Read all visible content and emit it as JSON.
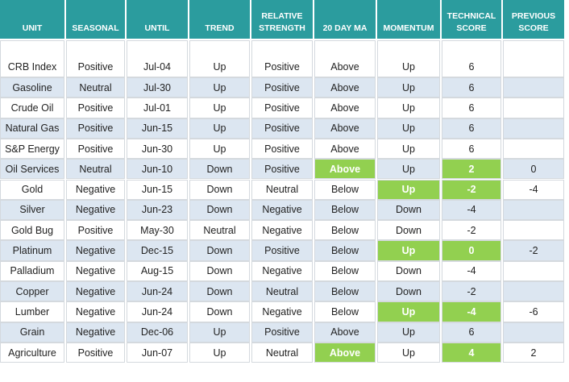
{
  "table": {
    "columns": [
      "UNIT",
      "SEASONAL",
      "UNTIL",
      "TREND",
      "RELATIVE STRENGTH",
      "20 DAY MA",
      "MOMENTUM",
      "TECHNICAL SCORE",
      "PREVIOUS SCORE"
    ],
    "rows": [
      [
        "CRB Index",
        "Positive",
        "Jul-04",
        "Up",
        "Positive",
        "Above",
        "Up",
        6,
        null
      ],
      [
        "Gasoline",
        "Neutral",
        "Jul-30",
        "Up",
        "Positive",
        "Above",
        "Up",
        6,
        null
      ],
      [
        "Crude Oil",
        "Positive",
        "Jul-01",
        "Up",
        "Positive",
        "Above",
        "Up",
        6,
        null
      ],
      [
        "Natural Gas",
        "Positive",
        "Jun-15",
        "Up",
        "Positive",
        "Above",
        "Up",
        6,
        null
      ],
      [
        "S&P Energy",
        "Positive",
        "Jun-30",
        "Up",
        "Positive",
        "Above",
        "Up",
        6,
        null
      ],
      [
        "Oil Services",
        "Neutral",
        "Jun-10",
        "Down",
        "Positive",
        "Above",
        "Up",
        2,
        0
      ],
      [
        "Gold",
        "Negative",
        "Jun-15",
        "Down",
        "Neutral",
        "Below",
        "Up",
        -2,
        -4
      ],
      [
        "Silver",
        "Negative",
        "Jun-23",
        "Down",
        "Negative",
        "Below",
        "Down",
        -4,
        null
      ],
      [
        "Gold Bug",
        "Positive",
        "May-30",
        "Neutral",
        "Negative",
        "Below",
        "Down",
        -2,
        null
      ],
      [
        "Platinum",
        "Negative",
        "Dec-15",
        "Down",
        "Positive",
        "Below",
        "Up",
        0,
        -2
      ],
      [
        "Palladium",
        "Negative",
        "Aug-15",
        "Down",
        "Negative",
        "Below",
        "Down",
        -4,
        null
      ],
      [
        "Copper",
        "Negative",
        "Jun-24",
        "Down",
        "Neutral",
        "Below",
        "Down",
        -2,
        null
      ],
      [
        "Lumber",
        "Negative",
        "Jun-24",
        "Down",
        "Negative",
        "Below",
        "Up",
        -4,
        -6
      ],
      [
        "Grain",
        "Negative",
        "Dec-06",
        "Up",
        "Positive",
        "Above",
        "Up",
        6,
        null
      ],
      [
        "Agriculture",
        "Positive",
        "Jun-07",
        "Up",
        "Neutral",
        "Above",
        "Up",
        4,
        2
      ]
    ]
  }
}
